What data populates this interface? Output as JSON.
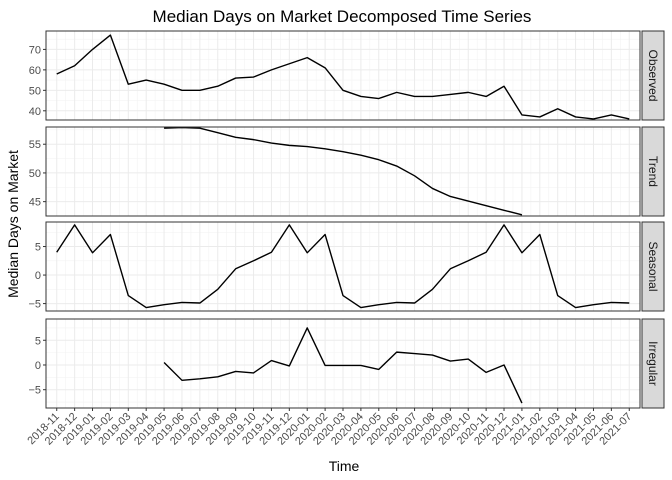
{
  "chart_data": {
    "type": "line",
    "title": "Median Days on Market Decomposed Time Series",
    "xlabel": "Time",
    "ylabel": "Median Days on Market",
    "grid": true,
    "legend": "none",
    "line_color": "#000000",
    "strip_color": "#d9d9d9",
    "x": [
      "2018-11",
      "2018-12",
      "2019-01",
      "2019-02",
      "2019-03",
      "2019-04",
      "2019-05",
      "2019-06",
      "2019-07",
      "2019-08",
      "2019-09",
      "2019-10",
      "2019-11",
      "2019-12",
      "2020-01",
      "2020-02",
      "2020-03",
      "2020-04",
      "2020-05",
      "2020-06",
      "2020-07",
      "2020-08",
      "2020-09",
      "2020-10",
      "2020-11",
      "2020-12",
      "2021-01",
      "2021-02",
      "2021-03",
      "2021-04",
      "2021-05",
      "2021-06",
      "2021-07"
    ],
    "panels": [
      {
        "name": "Observed",
        "ylim": [
          35.5,
          79
        ],
        "yticks": [
          40,
          50,
          60,
          70
        ],
        "values": [
          58,
          62,
          70,
          77,
          53,
          55,
          53,
          50,
          50,
          52,
          56,
          56.5,
          60,
          63,
          66,
          61,
          50,
          47,
          46,
          49,
          47,
          47,
          48,
          49,
          47,
          52,
          38,
          37,
          41,
          37,
          36,
          38,
          36
        ]
      },
      {
        "name": "Trend",
        "ylim": [
          42.5,
          58
        ],
        "yticks": [
          45,
          50,
          55
        ],
        "values": [
          null,
          null,
          null,
          null,
          null,
          null,
          57.8,
          57.9,
          57.8,
          57,
          56.2,
          55.8,
          55.2,
          54.8,
          54.6,
          54.2,
          53.7,
          53.1,
          52.3,
          51.2,
          49.5,
          47.3,
          45.9,
          45.1,
          44.3,
          43.5,
          42.7,
          null,
          null,
          null,
          null,
          null,
          null
        ]
      },
      {
        "name": "Seasonal",
        "ylim": [
          -6.3,
          9.3
        ],
        "yticks": [
          -5,
          0,
          5
        ],
        "values": [
          4,
          8.8,
          3.9,
          7.1,
          -3.6,
          -5.7,
          -5.2,
          -4.8,
          -4.9,
          -2.5,
          1.1,
          2.5,
          4,
          8.8,
          3.9,
          7.1,
          -3.6,
          -5.7,
          -5.2,
          -4.8,
          -4.9,
          -2.5,
          1.1,
          2.5,
          4,
          8.8,
          3.9,
          7.1,
          -3.6,
          -5.7,
          -5.2,
          -4.8,
          -4.9
        ]
      },
      {
        "name": "Irregular",
        "ylim": [
          -8.7,
          9.3
        ],
        "yticks": [
          -5,
          0,
          5
        ],
        "values": [
          null,
          null,
          null,
          null,
          null,
          null,
          0.5,
          -3.1,
          -2.8,
          -2.4,
          -1.3,
          -1.6,
          0.9,
          -0.2,
          7.5,
          -0.1,
          -0.1,
          -0.1,
          -0.9,
          2.6,
          2.3,
          2,
          0.8,
          1.2,
          -1.5,
          0,
          -7.7,
          null,
          null,
          null,
          null,
          null,
          null
        ]
      }
    ]
  }
}
